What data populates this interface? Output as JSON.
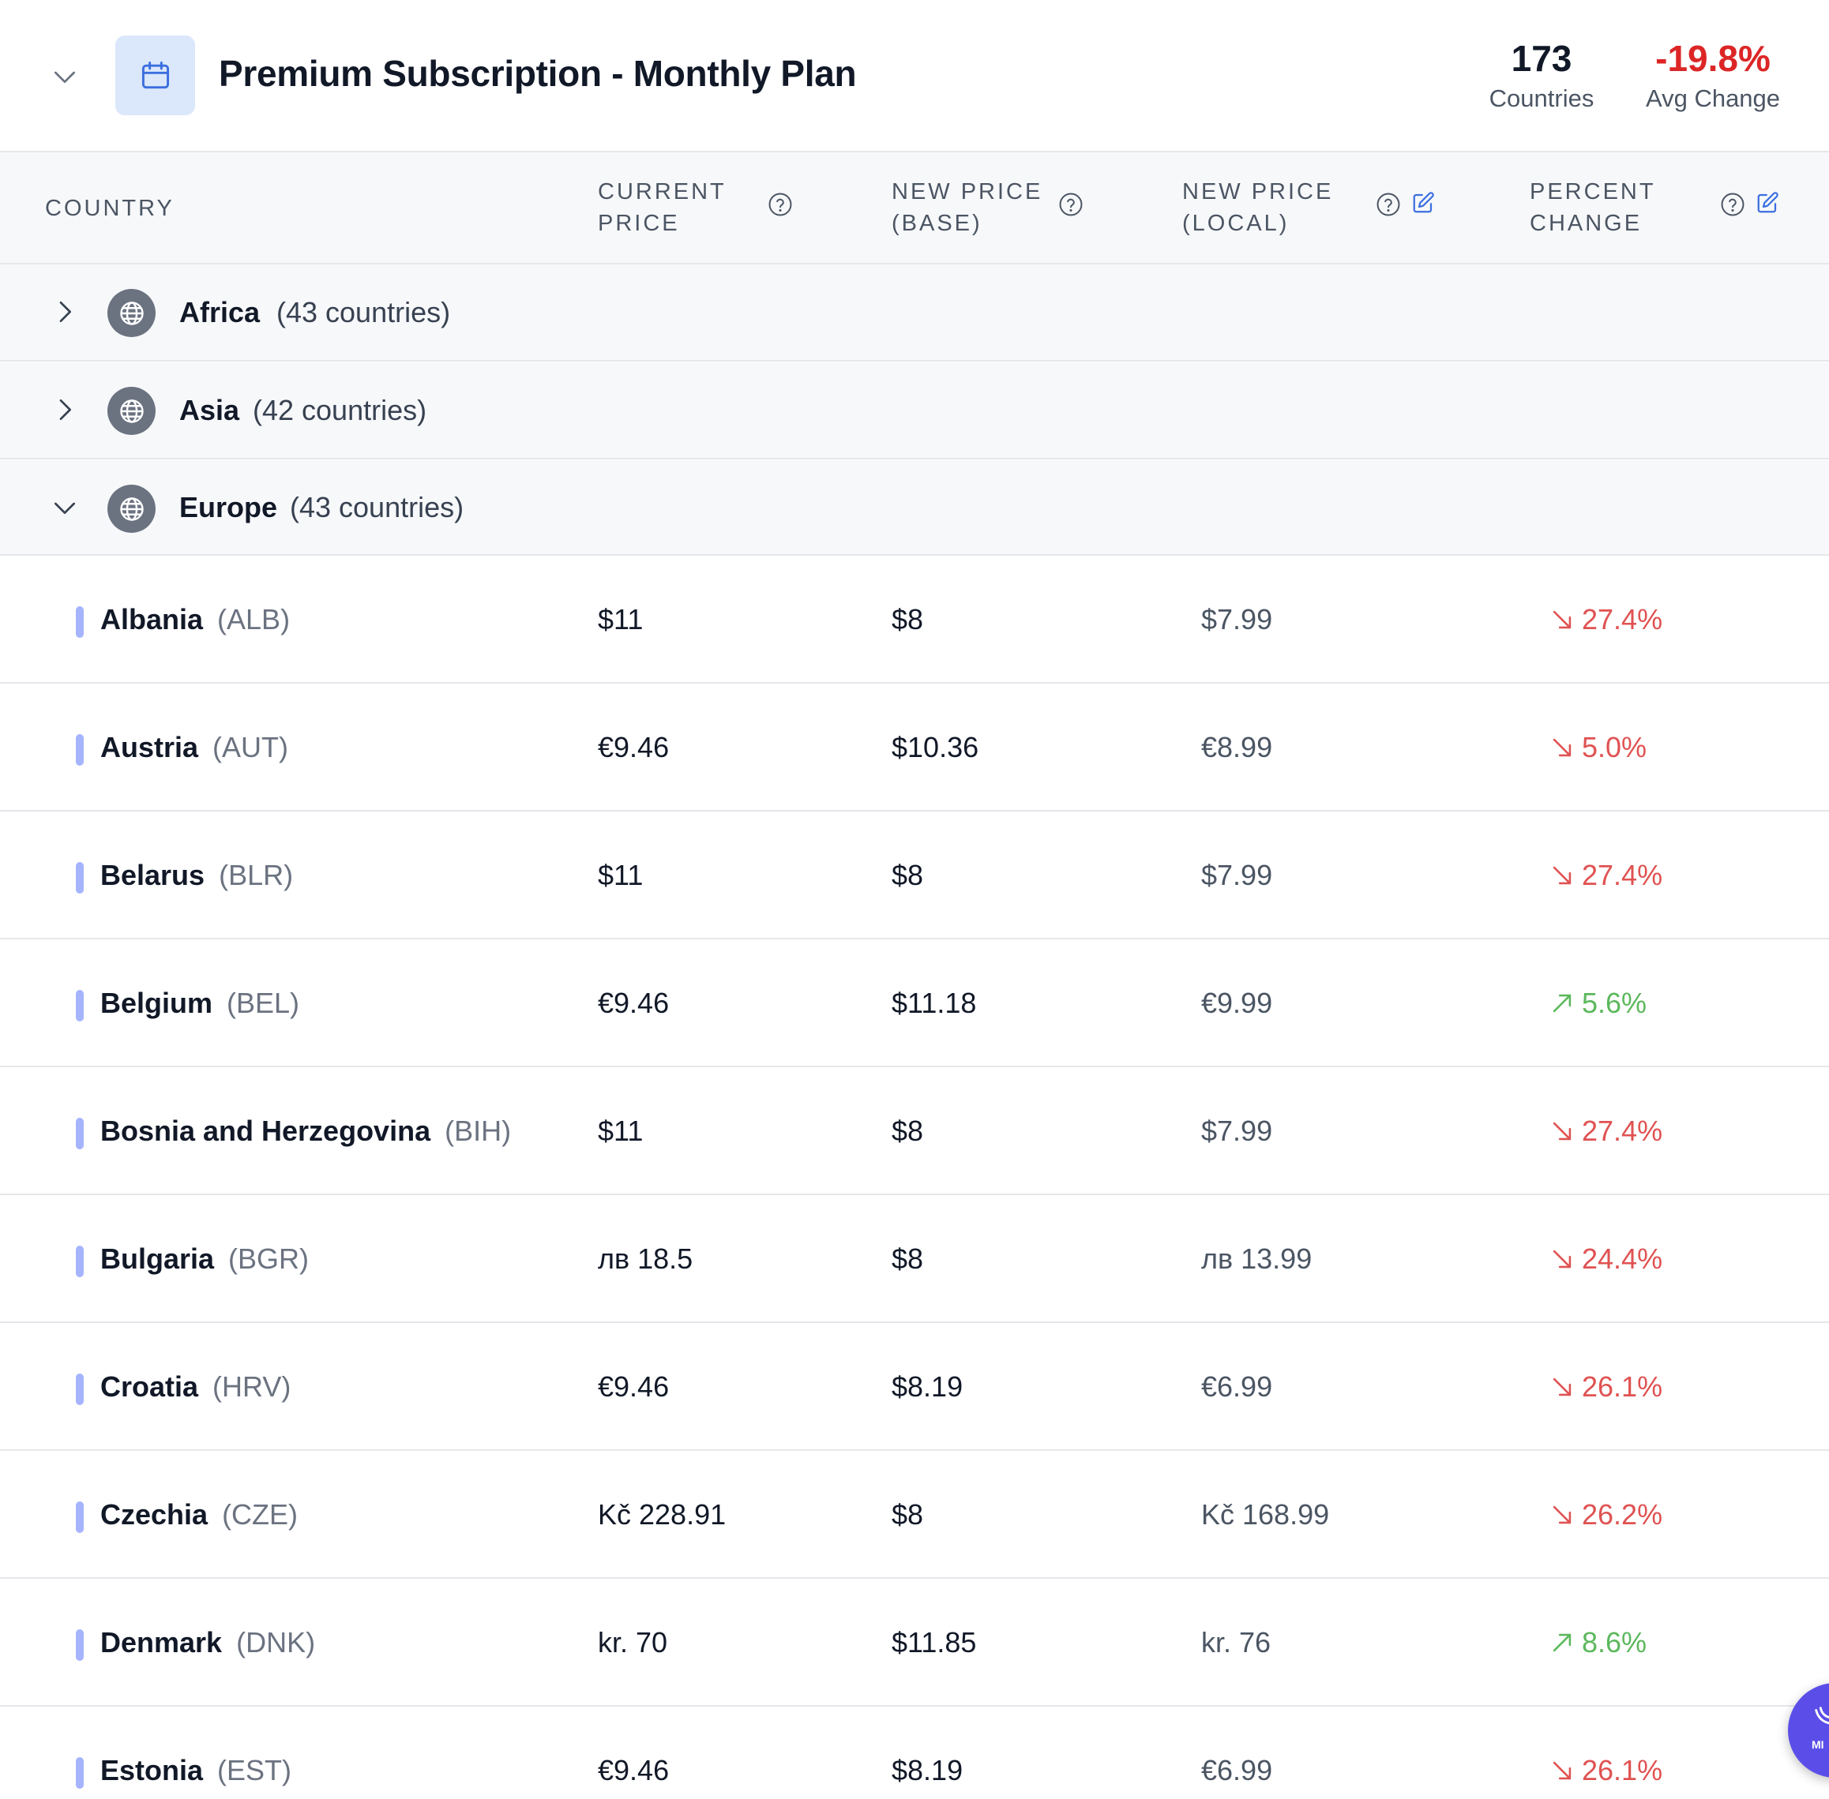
{
  "plan": {
    "title": "Premium Subscription - Monthly Plan",
    "countries_count": "173",
    "countries_label": "Countries",
    "avg_change": "-19.8%",
    "avg_change_label": "Avg Change"
  },
  "columns": {
    "country": "COUNTRY",
    "current_price": "CURRENT PRICE",
    "new_price_base": "NEW PRICE (BASE)",
    "new_price_local": "NEW PRICE (LOCAL)",
    "percent_change": "PERCENT CHANGE"
  },
  "groups": [
    {
      "name": "Africa",
      "count": "(43 countries)",
      "expanded": false
    },
    {
      "name": "Asia",
      "count": "(42 countries)",
      "expanded": false
    },
    {
      "name": "Europe",
      "count": "(43 countries)",
      "expanded": true
    }
  ],
  "rows": [
    {
      "country": "Albania",
      "code": "(ALB)",
      "current": "$11",
      "base": "$8",
      "local": "$7.99",
      "change": "27.4%",
      "direction": "down"
    },
    {
      "country": "Austria",
      "code": "(AUT)",
      "current": "€9.46",
      "base": "$10.36",
      "local": "€8.99",
      "change": "5.0%",
      "direction": "down"
    },
    {
      "country": "Belarus",
      "code": "(BLR)",
      "current": "$11",
      "base": "$8",
      "local": "$7.99",
      "change": "27.4%",
      "direction": "down"
    },
    {
      "country": "Belgium",
      "code": "(BEL)",
      "current": "€9.46",
      "base": "$11.18",
      "local": "€9.99",
      "change": "5.6%",
      "direction": "up"
    },
    {
      "country": "Bosnia and Herzegovina",
      "code": "(BIH)",
      "current": "$11",
      "base": "$8",
      "local": "$7.99",
      "change": "27.4%",
      "direction": "down"
    },
    {
      "country": "Bulgaria",
      "code": "(BGR)",
      "current": "лв 18.5",
      "base": "$8",
      "local": "лв 13.99",
      "change": "24.4%",
      "direction": "down"
    },
    {
      "country": "Croatia",
      "code": "(HRV)",
      "current": "€9.46",
      "base": "$8.19",
      "local": "€6.99",
      "change": "26.1%",
      "direction": "down"
    },
    {
      "country": "Czechia",
      "code": "(CZE)",
      "current": "Kč 228.91",
      "base": "$8",
      "local": "Kč 168.99",
      "change": "26.2%",
      "direction": "down"
    },
    {
      "country": "Denmark",
      "code": "(DNK)",
      "current": "kr. 70",
      "base": "$11.85",
      "local": "kr. 76",
      "change": "8.6%",
      "direction": "up"
    },
    {
      "country": "Estonia",
      "code": "(EST)",
      "current": "€9.46",
      "base": "$8.19",
      "local": "€6.99",
      "change": "26.1%",
      "direction": "down"
    }
  ],
  "colors": {
    "down": "#e05252",
    "up": "#5cb85c",
    "accent": "#3b6fe0",
    "fab": "#5b4ee8"
  },
  "fab": {
    "label": "MI"
  }
}
